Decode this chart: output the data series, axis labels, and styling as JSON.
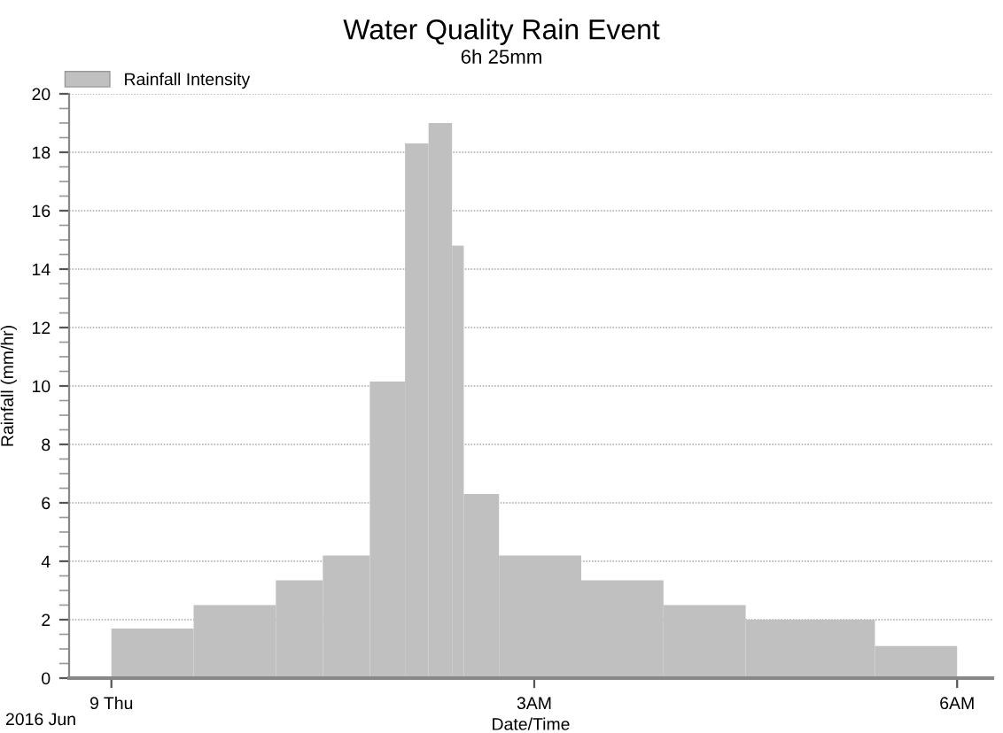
{
  "chart_data": {
    "type": "histogram",
    "title": "Water Quality Rain Event",
    "subtitle": "6h 25mm",
    "xlabel": "Date/Time",
    "ylabel": "Rainfall (mm/hr)",
    "annotations": [
      "2016 Jun"
    ],
    "bins": [
      "2016-06-09T00:00",
      "2016-06-09T00:35",
      "2016-06-09T01:10",
      "2016-06-09T01:30",
      "2016-06-09T01:50",
      "2016-06-09T02:05",
      "2016-06-09T02:15",
      "2016-06-09T02:25",
      "2016-06-09T02:30",
      "2016-06-09T02:45",
      "2016-06-09T03:20",
      "2016-06-09T03:55",
      "2016-06-09T04:30",
      "2016-06-09T05:25",
      "2016-06-09T06:00"
    ],
    "series": [
      {
        "name": "Rainfall Intensity",
        "color": "#c0c0c0",
        "values": [
          1.7,
          2.5,
          3.35,
          4.2,
          10.15,
          18.3,
          19.0,
          14.8,
          6.3,
          4.2,
          3.35,
          2.5,
          2.0,
          1.1
        ]
      }
    ],
    "xlim": [
      "2016-06-08T23:42",
      "2016-06-09T06:15"
    ],
    "ylim": [
      0,
      20
    ],
    "xticks": [
      {
        "value": "2016-06-09T00:00",
        "label": "9 Thu"
      },
      {
        "value": "2016-06-09T03:00",
        "label": "3AM"
      },
      {
        "value": "2016-06-09T06:00",
        "label": "6AM"
      }
    ],
    "yticks": [
      0,
      {
        "value": 0.5,
        "label": null
      },
      {
        "value": 1,
        "label": null
      },
      {
        "value": 1.5,
        "label": null
      },
      2,
      {
        "value": 2.5,
        "label": null
      },
      {
        "value": 3,
        "label": null
      },
      {
        "value": 3.5,
        "label": null
      },
      4,
      {
        "value": 4.5,
        "label": null
      },
      {
        "value": 5,
        "label": null
      },
      {
        "value": 5.5,
        "label": null
      },
      6,
      {
        "value": 6.5,
        "label": null
      },
      {
        "value": 7,
        "label": null
      },
      {
        "value": 7.5,
        "label": null
      },
      8,
      {
        "value": 8.5,
        "label": null
      },
      {
        "value": 9,
        "label": null
      },
      {
        "value": 9.5,
        "label": null
      },
      10,
      {
        "value": 10.5,
        "label": null
      },
      {
        "value": 11,
        "label": null
      },
      {
        "value": 11.5,
        "label": null
      },
      12,
      {
        "value": 12.5,
        "label": null
      },
      {
        "value": 13,
        "label": null
      },
      {
        "value": 13.5,
        "label": null
      },
      14,
      {
        "value": 14.5,
        "label": null
      },
      {
        "value": 15,
        "label": null
      },
      {
        "value": 15.5,
        "label": null
      },
      16,
      {
        "value": 16.5,
        "label": null
      },
      {
        "value": 17,
        "label": null
      },
      {
        "value": 17.5,
        "label": null
      },
      18,
      {
        "value": 18.5,
        "label": null
      },
      {
        "value": 19,
        "label": null
      },
      {
        "value": 19.5,
        "label": null
      },
      20
    ],
    "grid": "y",
    "legend": "top left"
  }
}
